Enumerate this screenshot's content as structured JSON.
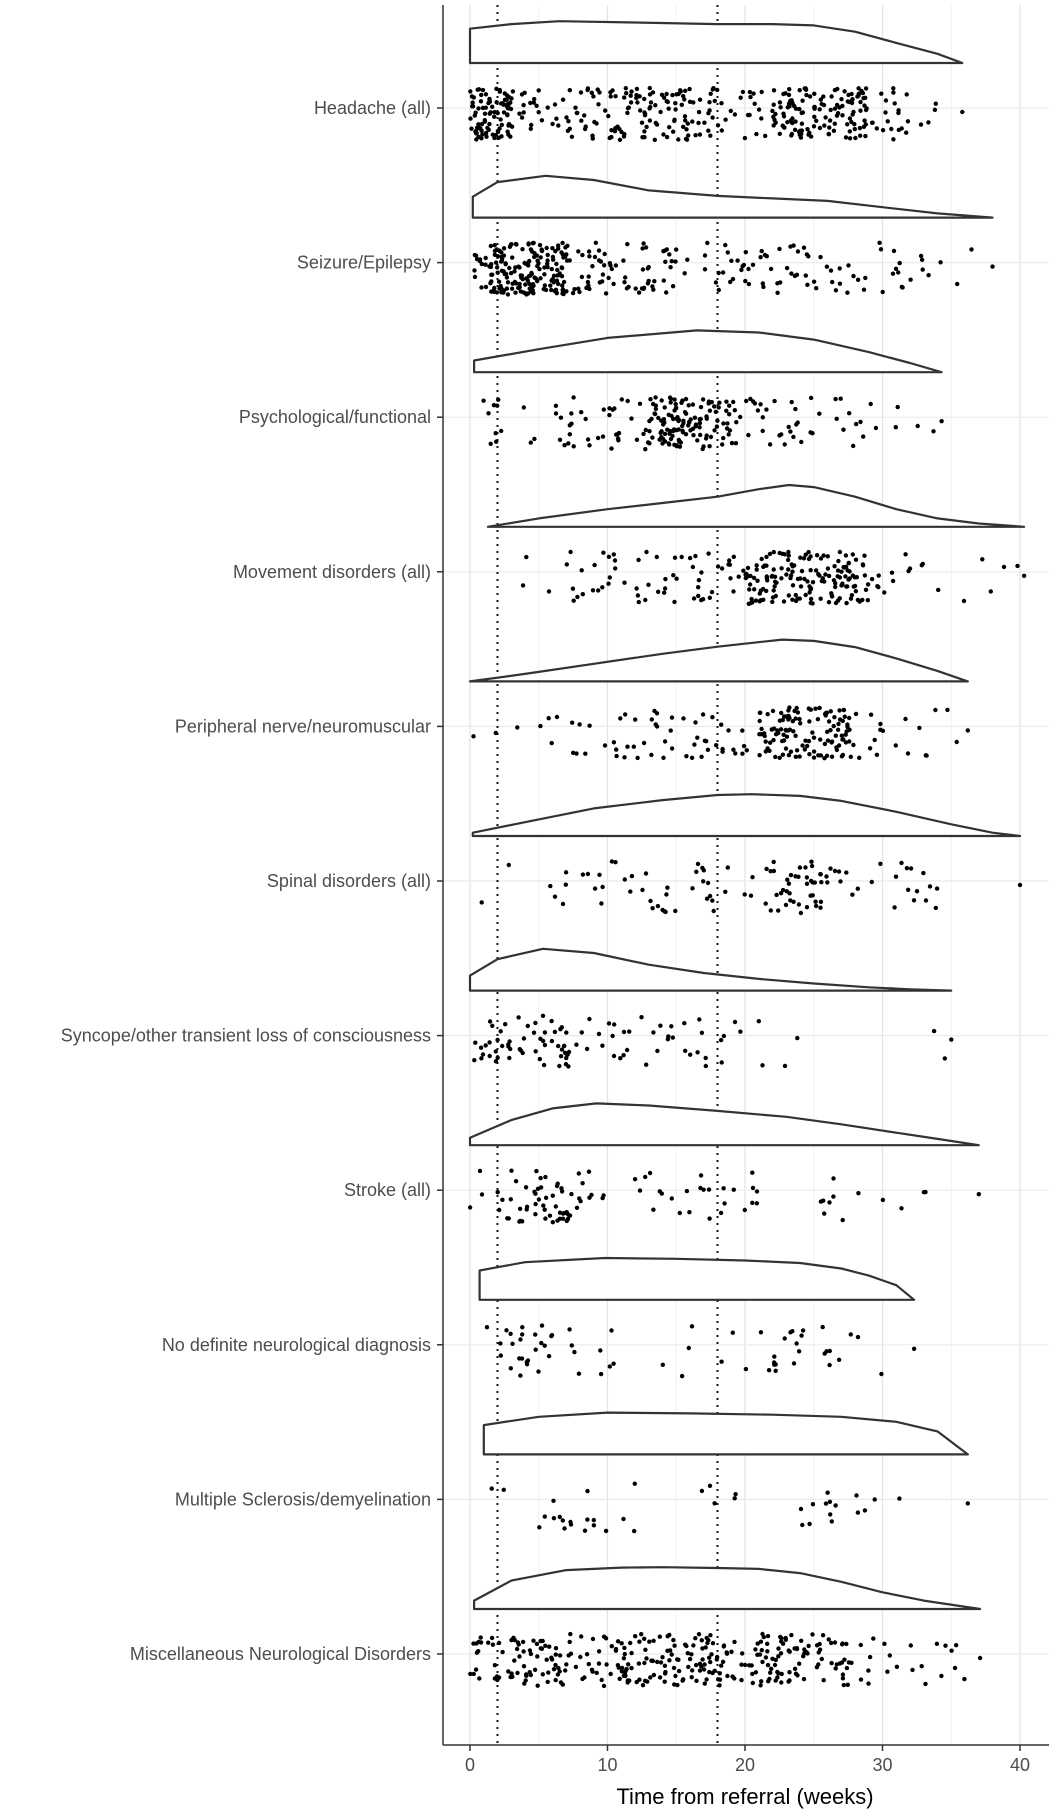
{
  "chart_data": {
    "type": "raincloud",
    "title": "",
    "xlabel": "Time from referral (weeks)",
    "ylabel": "",
    "xlim": [
      -2,
      42
    ],
    "xticks": [
      0,
      10,
      20,
      30,
      40
    ],
    "grid": true,
    "reference_lines_x": [
      2,
      18
    ],
    "categories": [
      "Headache (all)",
      "Seizure/Epilepsy",
      "Psychological/functional",
      "Movement disorders (all)",
      "Peripheral nerve/neuromuscular",
      "Spinal disorders (all)",
      "Syncope/other transient loss of consciousness",
      "Stroke (all)",
      "No definite neurological diagnosis",
      "Multiple Sclerosis/demyelination",
      "Miscellaneous Neurological Disorders"
    ],
    "series": [
      {
        "density": {
          "range": [
            0.0,
            35.8
          ],
          "peak": 6.5,
          "shape": [
            [
              0.0,
              0.82
            ],
            [
              3,
              0.93
            ],
            [
              6.5,
              1.0
            ],
            [
              12,
              0.97
            ],
            [
              18,
              0.93
            ],
            [
              22,
              0.93
            ],
            [
              25,
              0.9
            ],
            [
              28,
              0.75
            ],
            [
              31,
              0.48
            ],
            [
              34,
              0.22
            ],
            [
              35.8,
              0.0
            ]
          ]
        },
        "points_approx": {
          "count": 420,
          "x_range": [
            0,
            35.8
          ],
          "dense_regions": [
            [
              0,
              3
            ],
            [
              22,
              29
            ]
          ]
        }
      },
      {
        "density": {
          "range": [
            0.2,
            38.0
          ],
          "peak": 5.5,
          "shape": [
            [
              0.2,
              0.5
            ],
            [
              2,
              0.85
            ],
            [
              5.5,
              1.0
            ],
            [
              9,
              0.9
            ],
            [
              13,
              0.65
            ],
            [
              18,
              0.52
            ],
            [
              22,
              0.46
            ],
            [
              26,
              0.4
            ],
            [
              30,
              0.25
            ],
            [
              34,
              0.1
            ],
            [
              38,
              0.0
            ]
          ]
        },
        "points_approx": {
          "count": 330,
          "x_range": [
            0.2,
            38.0
          ],
          "dense_regions": [
            [
              1,
              7
            ]
          ]
        }
      },
      {
        "density": {
          "range": [
            0.3,
            34.3
          ],
          "peak": 16.5,
          "shape": [
            [
              0.3,
              0.28
            ],
            [
              5,
              0.55
            ],
            [
              10,
              0.82
            ],
            [
              16.5,
              1.0
            ],
            [
              21,
              0.95
            ],
            [
              25,
              0.78
            ],
            [
              29,
              0.48
            ],
            [
              32,
              0.22
            ],
            [
              34.3,
              0.0
            ]
          ]
        },
        "points_approx": {
          "count": 220,
          "x_range": [
            0.3,
            34.3
          ],
          "dense_regions": [
            [
              13,
              18
            ]
          ]
        }
      },
      {
        "density": {
          "range": [
            1.3,
            40.3
          ],
          "peak": 23.2,
          "shape": [
            [
              1.3,
              0.0
            ],
            [
              5,
              0.2
            ],
            [
              10,
              0.42
            ],
            [
              14,
              0.57
            ],
            [
              18,
              0.72
            ],
            [
              21,
              0.9
            ],
            [
              23.2,
              1.0
            ],
            [
              25,
              0.95
            ],
            [
              28,
              0.72
            ],
            [
              31,
              0.42
            ],
            [
              34,
              0.2
            ],
            [
              37,
              0.08
            ],
            [
              40.3,
              0.0
            ]
          ]
        },
        "points_approx": {
          "count": 240,
          "x_range": [
            1.0,
            40.3
          ],
          "dense_regions": [
            [
              20,
              28
            ]
          ]
        }
      },
      {
        "density": {
          "range": [
            0.0,
            36.2
          ],
          "peak": 22.7,
          "shape": [
            [
              0.0,
              0.0
            ],
            [
              4,
              0.18
            ],
            [
              9,
              0.42
            ],
            [
              14,
              0.66
            ],
            [
              18,
              0.83
            ],
            [
              22.7,
              1.0
            ],
            [
              25,
              0.97
            ],
            [
              28,
              0.82
            ],
            [
              31,
              0.55
            ],
            [
              34,
              0.25
            ],
            [
              36.2,
              0.0
            ]
          ]
        },
        "points_approx": {
          "count": 200,
          "x_range": [
            0,
            36.2
          ],
          "dense_regions": [
            [
              21,
              28
            ]
          ]
        }
      },
      {
        "density": {
          "range": [
            0.2,
            40.0
          ],
          "peak": 20.5,
          "shape": [
            [
              0.2,
              0.08
            ],
            [
              4,
              0.33
            ],
            [
              9,
              0.66
            ],
            [
              14,
              0.86
            ],
            [
              18,
              0.98
            ],
            [
              20.5,
              1.0
            ],
            [
              24,
              0.96
            ],
            [
              27,
              0.84
            ],
            [
              31,
              0.58
            ],
            [
              35,
              0.28
            ],
            [
              38,
              0.08
            ],
            [
              40.0,
              0.0
            ]
          ]
        },
        "points_approx": {
          "count": 110,
          "x_range": [
            0.2,
            40.0
          ],
          "dense_regions": [
            [
              22,
              27
            ]
          ]
        }
      },
      {
        "density": {
          "range": [
            0.0,
            35.0
          ],
          "peak": 5.3,
          "shape": [
            [
              0.0,
              0.36
            ],
            [
              2,
              0.75
            ],
            [
              5.3,
              1.0
            ],
            [
              9,
              0.9
            ],
            [
              13,
              0.62
            ],
            [
              17,
              0.42
            ],
            [
              21,
              0.28
            ],
            [
              25,
              0.17
            ],
            [
              29,
              0.08
            ],
            [
              32,
              0.03
            ],
            [
              35.0,
              0.0
            ]
          ]
        },
        "points_approx": {
          "count": 100,
          "x_range": [
            0,
            35.0
          ],
          "dense_regions": [
            [
              0,
              7
            ]
          ]
        }
      },
      {
        "density": {
          "range": [
            0.0,
            37.0
          ],
          "peak": 9.2,
          "shape": [
            [
              0.0,
              0.18
            ],
            [
              3,
              0.6
            ],
            [
              6,
              0.88
            ],
            [
              9.2,
              1.0
            ],
            [
              13,
              0.95
            ],
            [
              18,
              0.82
            ],
            [
              23,
              0.68
            ],
            [
              27,
              0.5
            ],
            [
              31,
              0.3
            ],
            [
              34,
              0.15
            ],
            [
              37.0,
              0.0
            ]
          ]
        },
        "points_approx": {
          "count": 100,
          "x_range": [
            0,
            37.0
          ],
          "dense_regions": [
            [
              2,
              8
            ]
          ]
        }
      },
      {
        "density": {
          "range": [
            0.7,
            32.3
          ],
          "peak": 9.8,
          "shape": [
            [
              0.7,
              0.7
            ],
            [
              4,
              0.9
            ],
            [
              9.8,
              1.0
            ],
            [
              15,
              0.98
            ],
            [
              20,
              0.94
            ],
            [
              24,
              0.88
            ],
            [
              27,
              0.75
            ],
            [
              29,
              0.58
            ],
            [
              31,
              0.35
            ],
            [
              32.3,
              0.0
            ]
          ]
        },
        "points_approx": {
          "count": 65,
          "x_range": [
            0.7,
            32.3
          ],
          "dense_regions": [
            [
              2,
              6
            ],
            [
              22,
              27
            ]
          ]
        }
      },
      {
        "density": {
          "range": [
            1.0,
            36.2
          ],
          "peak": 10.0,
          "shape": [
            [
              1.0,
              0.7
            ],
            [
              5,
              0.9
            ],
            [
              10,
              1.0
            ],
            [
              16,
              0.98
            ],
            [
              22,
              0.95
            ],
            [
              27,
              0.9
            ],
            [
              31,
              0.78
            ],
            [
              34,
              0.55
            ],
            [
              36.2,
              0.0
            ]
          ]
        },
        "points_approx": {
          "count": 40,
          "x_range": [
            1.0,
            36.2
          ],
          "dense_regions": [
            [
              4,
              10
            ],
            [
              24,
              28
            ]
          ]
        }
      },
      {
        "density": {
          "range": [
            0.3,
            37.1
          ],
          "peak": 14.0,
          "shape": [
            [
              0.3,
              0.2
            ],
            [
              3,
              0.68
            ],
            [
              7,
              0.93
            ],
            [
              11,
              0.99
            ],
            [
              14,
              1.0
            ],
            [
              18,
              0.98
            ],
            [
              21,
              0.96
            ],
            [
              24,
              0.86
            ],
            [
              27,
              0.65
            ],
            [
              30,
              0.4
            ],
            [
              33,
              0.2
            ],
            [
              37.1,
              0.0
            ]
          ]
        },
        "points_approx": {
          "count": 340,
          "x_range": [
            0.3,
            37.1
          ],
          "dense_regions": [
            [
              0,
              28
            ]
          ]
        }
      }
    ]
  }
}
